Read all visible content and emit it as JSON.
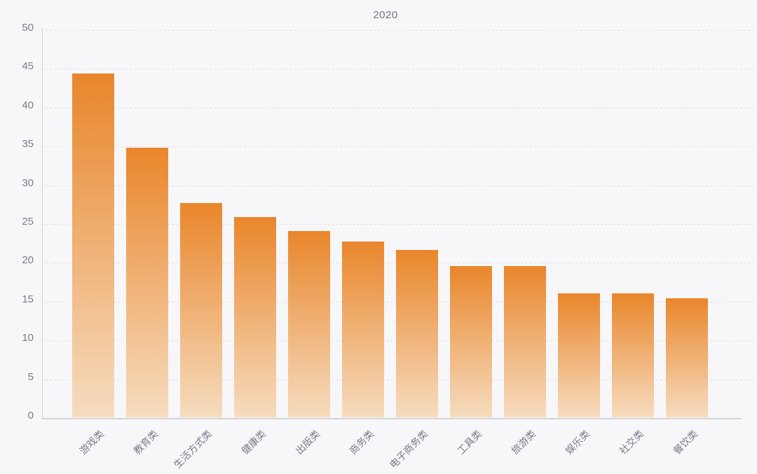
{
  "chart_data": {
    "type": "bar",
    "title": "2020",
    "categories": [
      "游戏类",
      "教育类",
      "生活方式类",
      "健康类",
      "出版类",
      "商务类",
      "电子商务类",
      "工具类",
      "旅游类",
      "娱乐类",
      "社交类",
      "餐饮类"
    ],
    "values": [
      44.4,
      34.8,
      27.7,
      25.9,
      24.1,
      22.7,
      21.7,
      19.6,
      19.6,
      16.1,
      16.1,
      15.4
    ],
    "xlabel": "",
    "ylabel": "",
    "ylim": [
      0,
      50
    ],
    "yticks": [
      0,
      5,
      10,
      15,
      20,
      25,
      30,
      35,
      40,
      45,
      50
    ],
    "grid": "horizontal-dotted",
    "legend_position": "none",
    "x_label_rotation_deg": 45
  },
  "colors": {
    "background": "#f7f7f9",
    "bar_gradient_top": "#e9862b",
    "bar_gradient_bottom": "#f6dcbf",
    "grid_line": "#d6d6dc",
    "axis_line": "#d3d3d9",
    "tick_label": "#7b7b89",
    "title": "#73737f"
  }
}
